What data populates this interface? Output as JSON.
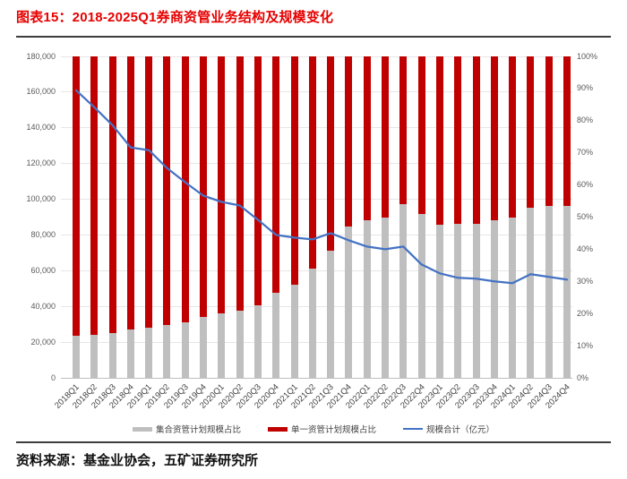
{
  "header": {
    "title": "图表15：2018-2025Q1券商资管业务结构及规模变化"
  },
  "footer": {
    "source": "资料来源：基金业协会，五矿证券研究所"
  },
  "chart_data": {
    "type": "bar",
    "subtype": "100%-stacked-bars-with-line-overlay",
    "title": "图表15：2018-2025Q1券商资管业务结构及规模变化",
    "categories": [
      "2018Q1",
      "2018Q2",
      "2018Q3",
      "2018Q4",
      "2019Q1",
      "2019Q2",
      "2019Q3",
      "2019Q4",
      "2020Q1",
      "2020Q2",
      "2020Q3",
      "2020Q4",
      "2021Q1",
      "2021Q2",
      "2021Q3",
      "2021Q4",
      "2022Q1",
      "2022Q2",
      "2022Q3",
      "2022Q4",
      "2023Q1",
      "2023Q2",
      "2023Q3",
      "2023Q4",
      "2024Q1",
      "2024Q2",
      "2024Q3",
      "2024Q4"
    ],
    "series": [
      {
        "name": "集合资管计划规模占比",
        "type": "bar",
        "axis": "right",
        "unit": "%",
        "values": [
          13.0,
          13.3,
          14.0,
          15.0,
          15.6,
          16.5,
          17.4,
          19.0,
          20.0,
          21.0,
          22.5,
          26.5,
          29.0,
          34.0,
          39.5,
          47.0,
          49.0,
          50.0,
          54.0,
          51.0,
          47.5,
          48.0,
          48.0,
          49.0,
          50.0,
          53.0,
          53.5,
          53.5
        ]
      },
      {
        "name": "单一资管计划规模占比",
        "type": "bar",
        "axis": "right",
        "unit": "%",
        "values": [
          87.0,
          86.7,
          86.0,
          85.0,
          84.4,
          83.5,
          82.6,
          81.0,
          80.0,
          79.0,
          77.5,
          73.5,
          71.0,
          66.0,
          60.5,
          53.0,
          51.0,
          50.0,
          46.0,
          49.0,
          52.5,
          52.0,
          52.0,
          51.0,
          50.0,
          47.0,
          46.5,
          46.5
        ]
      },
      {
        "name": "规模合计（亿元）",
        "type": "line",
        "axis": "left",
        "unit": "亿元",
        "values": [
          161000,
          151500,
          141500,
          129000,
          127500,
          117500,
          109500,
          102000,
          98500,
          96500,
          88500,
          80000,
          78500,
          77500,
          81000,
          77000,
          73500,
          72000,
          73500,
          63500,
          58500,
          56000,
          55500,
          54000,
          53000,
          58000,
          56500,
          55000
        ]
      }
    ],
    "left_axis": {
      "min": 0,
      "max": 180000,
      "step": 20000,
      "ticks": [
        "0",
        "20,000",
        "40,000",
        "60,000",
        "80,000",
        "100,000",
        "120,000",
        "140,000",
        "160,000",
        "180,000"
      ]
    },
    "right_axis": {
      "min": 0,
      "max": 100,
      "step": 10,
      "ticks": [
        "0%",
        "10%",
        "20%",
        "30%",
        "40%",
        "50%",
        "60%",
        "70%",
        "80%",
        "90%",
        "100%"
      ]
    },
    "legend_position": "bottom",
    "grid": true,
    "colors": {
      "collective_bar": "#bfbfbf",
      "single_bar": "#c00000",
      "total_line": "#4472c4",
      "title_red": "#e60000",
      "rule_dark": "#3d3d3d",
      "gridline": "#e6e6e6",
      "axis_text": "#595959",
      "axis_line": "#bfbfbf"
    }
  }
}
